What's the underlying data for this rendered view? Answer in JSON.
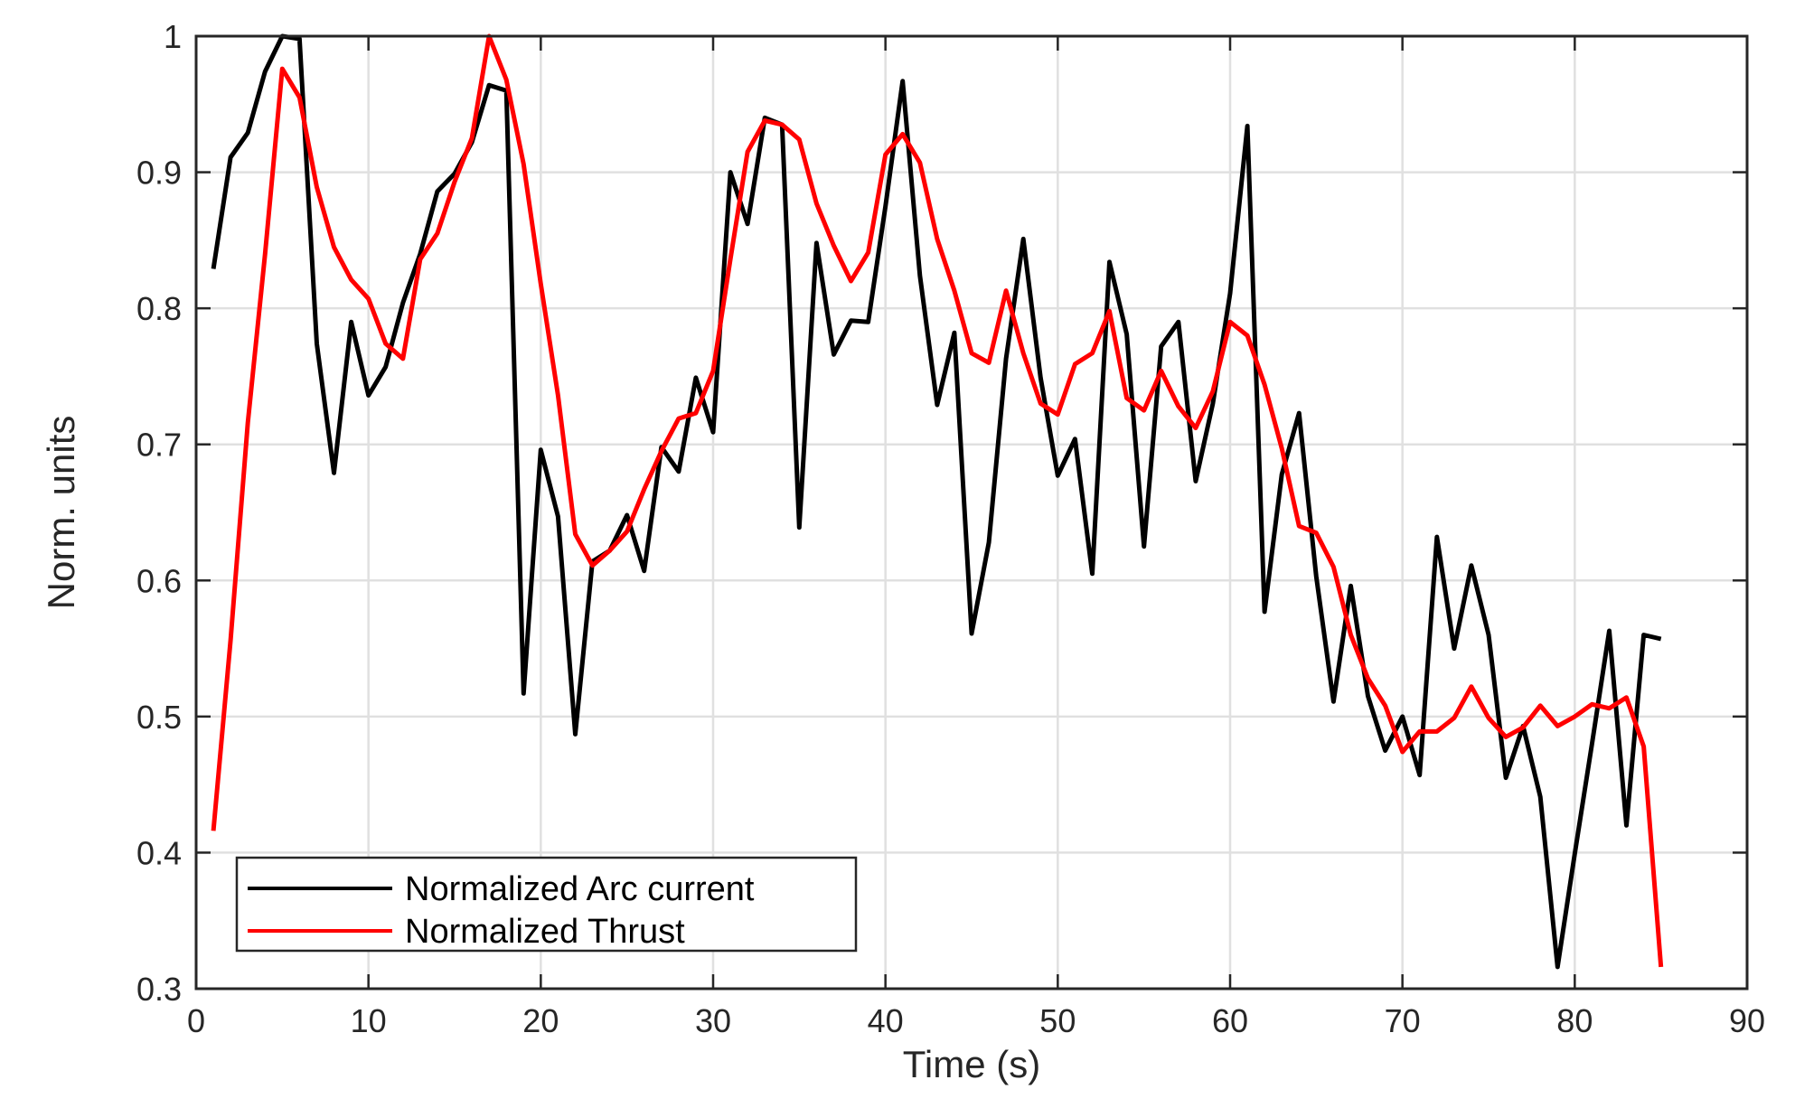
{
  "chart_data": {
    "type": "line",
    "title": "",
    "xlabel": "Time (s)",
    "ylabel": "Norm. units",
    "xlim": [
      0,
      90
    ],
    "ylim": [
      0.3,
      1
    ],
    "xticks": [
      0,
      10,
      20,
      30,
      40,
      50,
      60,
      70,
      80,
      90
    ],
    "yticks": [
      0.3,
      0.4,
      0.5,
      0.6,
      0.7,
      0.8,
      0.9,
      1
    ],
    "xtick_labels": [
      "0",
      "10",
      "20",
      "30",
      "40",
      "50",
      "60",
      "70",
      "80",
      "90"
    ],
    "ytick_labels": [
      "0.3",
      "0.4",
      "0.5",
      "0.6",
      "0.7",
      "0.8",
      "0.9",
      "1"
    ],
    "grid": true,
    "legend_position": "bottom-left",
    "x": [
      1,
      2,
      3,
      4,
      5,
      6,
      7,
      8,
      9,
      10,
      11,
      12,
      13,
      14,
      15,
      16,
      17,
      18,
      19,
      20,
      21,
      22,
      23,
      24,
      25,
      26,
      27,
      28,
      29,
      30,
      31,
      32,
      33,
      34,
      35,
      36,
      37,
      38,
      39,
      40,
      41,
      42,
      43,
      44,
      45,
      46,
      47,
      48,
      49,
      50,
      51,
      52,
      53,
      54,
      55,
      56,
      57,
      58,
      59,
      60,
      61,
      62,
      63,
      64,
      65,
      66,
      67,
      68,
      69,
      70,
      71,
      72,
      73,
      74,
      75,
      76,
      77,
      78,
      79,
      80,
      81,
      82,
      83,
      84,
      85
    ],
    "series": [
      {
        "name": "Normalized Arc current",
        "color": "#000000",
        "values": [
          0.829,
          0.911,
          0.929,
          0.974,
          1.0,
          0.998,
          0.774,
          0.679,
          0.79,
          0.736,
          0.757,
          0.804,
          0.84,
          0.886,
          0.899,
          0.922,
          0.964,
          0.96,
          0.517,
          0.696,
          0.647,
          0.487,
          0.614,
          0.622,
          0.648,
          0.607,
          0.698,
          0.68,
          0.749,
          0.709,
          0.9,
          0.862,
          0.94,
          0.935,
          0.639,
          0.848,
          0.766,
          0.791,
          0.79,
          0.875,
          0.967,
          0.824,
          0.729,
          0.782,
          0.561,
          0.628,
          0.763,
          0.851,
          0.749,
          0.677,
          0.704,
          0.605,
          0.834,
          0.781,
          0.625,
          0.772,
          0.79,
          0.673,
          0.73,
          0.811,
          0.934,
          0.577,
          0.678,
          0.723,
          0.603,
          0.511,
          0.596,
          0.515,
          0.475,
          0.5,
          0.457,
          0.632,
          0.55,
          0.611,
          0.56,
          0.455,
          0.493,
          0.441,
          0.316,
          0.399,
          0.48,
          0.563,
          0.42,
          0.56,
          0.557
        ]
      },
      {
        "name": "Normalized Thrust",
        "color": "#ff0000",
        "values": [
          0.416,
          0.556,
          0.716,
          0.84,
          0.976,
          0.955,
          0.889,
          0.845,
          0.821,
          0.807,
          0.774,
          0.763,
          0.836,
          0.855,
          0.893,
          0.925,
          1.0,
          0.968,
          0.906,
          0.818,
          0.736,
          0.634,
          0.611,
          0.622,
          0.636,
          0.667,
          0.695,
          0.719,
          0.723,
          0.754,
          0.836,
          0.915,
          0.938,
          0.935,
          0.924,
          0.877,
          0.846,
          0.82,
          0.841,
          0.913,
          0.928,
          0.907,
          0.851,
          0.813,
          0.767,
          0.76,
          0.813,
          0.767,
          0.73,
          0.722,
          0.759,
          0.767,
          0.798,
          0.734,
          0.725,
          0.754,
          0.728,
          0.712,
          0.739,
          0.79,
          0.78,
          0.744,
          0.697,
          0.64,
          0.635,
          0.61,
          0.56,
          0.528,
          0.508,
          0.474,
          0.489,
          0.489,
          0.499,
          0.522,
          0.499,
          0.485,
          0.492,
          0.508,
          0.493,
          0.5,
          0.509,
          0.506,
          0.514,
          0.478,
          0.316
        ]
      }
    ]
  }
}
